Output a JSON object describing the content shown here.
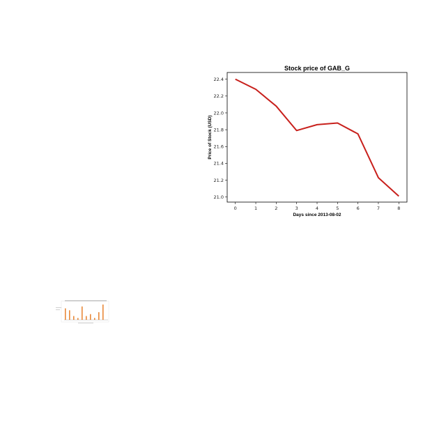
{
  "chart_data": [
    {
      "type": "line",
      "title": "Stock price of GAB_G",
      "xlabel": "Days since 2013-08-02",
      "ylabel": "Price of Stock (USD)",
      "x": [
        0,
        1,
        2,
        3,
        4,
        5,
        6,
        7,
        8
      ],
      "series": [
        {
          "color": "#c8201c",
          "values": [
            22.4,
            22.28,
            22.08,
            21.79,
            21.86,
            21.88,
            21.75,
            21.23,
            21.01
          ]
        }
      ],
      "xlim": [
        -0.4,
        8.4
      ],
      "ylim": [
        20.94,
        22.48
      ],
      "xticks": [
        "0",
        "1",
        "2",
        "3",
        "4",
        "5",
        "6",
        "7",
        "8"
      ],
      "yticks": [
        "21.0",
        "21.2",
        "21.4",
        "21.6",
        "21.8",
        "22.0",
        "22.2",
        "22.4"
      ],
      "grid": false,
      "legend": "none"
    },
    {
      "type": "bar",
      "note_color": "#e8893a",
      "values": [
        6,
        5,
        2,
        1,
        7,
        2,
        3,
        1,
        4,
        8
      ]
    }
  ]
}
